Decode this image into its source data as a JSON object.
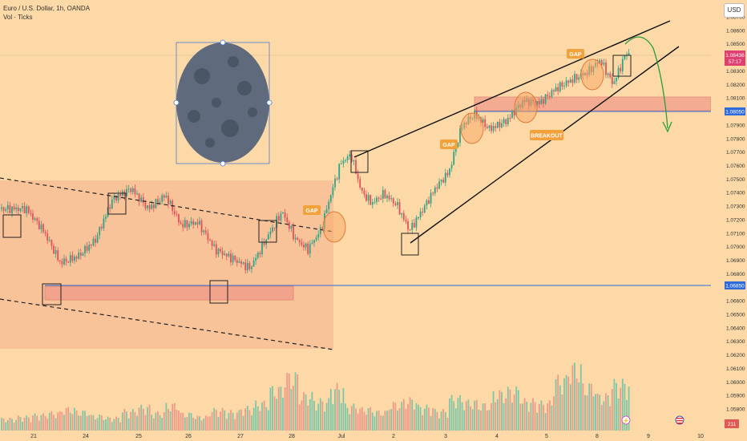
{
  "header": {
    "symbol_line": "Euro / U.S. Dollar, 1h, OANDA",
    "volume_line": "Vol · Ticks"
  },
  "currency_button": "USD",
  "price_tags": {
    "last_price": "1.08436",
    "countdown": "57:17",
    "resistance_price": "1.08050",
    "support_price": "1.06850",
    "volume_value": "211"
  },
  "annotations": {
    "gap_labels": [
      "GAP",
      "GAP",
      "GAP"
    ],
    "breakout_label": "BREAKOUT"
  },
  "chart_data": {
    "type": "candlestick",
    "title": "Euro / U.S. Dollar, 1h, OANDA",
    "x_tick_labels": [
      "21",
      "24",
      "25",
      "26",
      "27",
      "28",
      "Jul",
      "2",
      "3",
      "4",
      "5",
      "8",
      "9",
      "10"
    ],
    "y_tick_labels": [
      "1.08700",
      "1.08600",
      "1.08500",
      "1.08300",
      "1.08200",
      "1.08100",
      "1.08000",
      "1.07900",
      "1.07800",
      "1.07700",
      "1.07600",
      "1.07500",
      "1.07400",
      "1.07300",
      "1.07200",
      "1.07100",
      "1.07000",
      "1.06900",
      "1.06800",
      "1.06700",
      "1.06600",
      "1.06500",
      "1.06400",
      "1.06300",
      "1.06200",
      "1.06100",
      "1.06000",
      "1.05900",
      "1.05800"
    ],
    "ylim": [
      1.0575,
      1.0878
    ],
    "close_path": [
      [
        "21",
        1.0728
      ],
      [
        "21",
        1.0712
      ],
      [
        "21",
        1.0688
      ],
      [
        "24",
        1.0693
      ],
      [
        "24",
        1.0705
      ],
      [
        "24",
        1.0735
      ],
      [
        "25",
        1.0743
      ],
      [
        "25",
        1.0728
      ],
      [
        "25",
        1.0738
      ],
      [
        "26",
        1.0716
      ],
      [
        "26",
        1.0718
      ],
      [
        "26",
        1.0698
      ],
      [
        "27",
        1.0691
      ],
      [
        "27",
        1.0684
      ],
      [
        "27",
        1.0707
      ],
      [
        "28",
        1.0726
      ],
      [
        "28",
        1.0706
      ],
      [
        "28",
        1.0698
      ],
      [
        "28",
        1.0712
      ],
      [
        "Jul",
        1.0738
      ],
      [
        "Jul",
        1.0762
      ],
      [
        "Jul",
        1.0768
      ],
      [
        "Jul",
        1.0741
      ],
      [
        "Jul",
        1.0732
      ],
      [
        "2",
        1.0739
      ],
      [
        "2",
        1.0731
      ],
      [
        "2",
        1.0712
      ],
      [
        "2",
        1.0727
      ],
      [
        "3",
        1.0744
      ],
      [
        "3",
        1.0755
      ],
      [
        "3",
        1.0789
      ],
      [
        "3",
        1.0798
      ],
      [
        "4",
        1.0787
      ],
      [
        "4",
        1.0793
      ],
      [
        "4",
        1.0808
      ],
      [
        "5",
        1.0806
      ],
      [
        "5",
        1.0817
      ],
      [
        "5",
        1.0824
      ],
      [
        "8",
        1.0829
      ],
      [
        "8",
        1.0838
      ],
      [
        "8",
        1.082
      ],
      [
        "8",
        1.0843
      ]
    ],
    "volume": [
      12,
      14,
      16,
      18,
      22,
      19,
      15,
      13,
      20,
      24,
      18,
      26,
      17,
      14,
      21,
      19,
      23,
      28,
      42,
      55,
      36,
      30,
      44,
      25,
      22,
      19,
      27,
      31,
      24,
      20,
      33,
      29,
      26,
      38,
      41,
      30,
      28,
      52,
      64,
      45,
      35,
      48
    ]
  }
}
